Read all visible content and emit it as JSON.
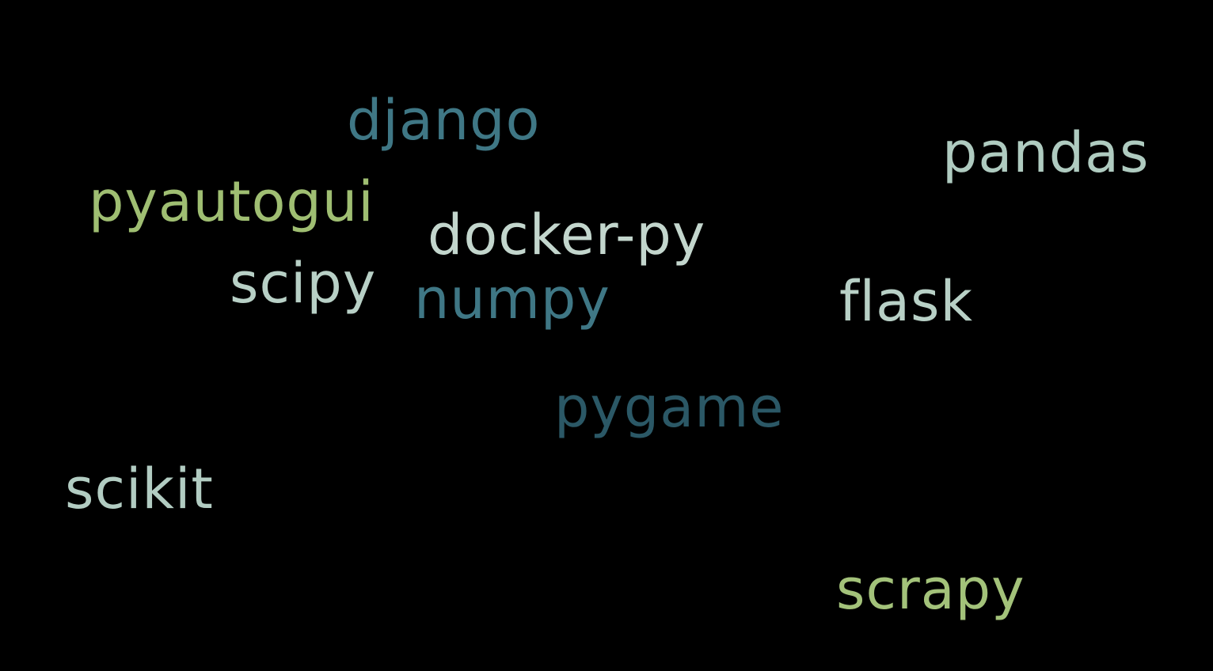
{
  "words": [
    {
      "text": "django",
      "color": "#3f7785"
    },
    {
      "text": "pandas",
      "color": "#afcbc0"
    },
    {
      "text": "pyautogui",
      "color": "#9fbe72"
    },
    {
      "text": "docker-py",
      "color": "#c3d6cd"
    },
    {
      "text": "scipy",
      "color": "#b8d0c6"
    },
    {
      "text": "numpy",
      "color": "#3f7785"
    },
    {
      "text": "flask",
      "color": "#b8d0c6"
    },
    {
      "text": "pygame",
      "color": "#2b5866"
    },
    {
      "text": "scikit",
      "color": "#b2ccc2"
    },
    {
      "text": "scrapy",
      "color": "#a3c27a"
    }
  ]
}
